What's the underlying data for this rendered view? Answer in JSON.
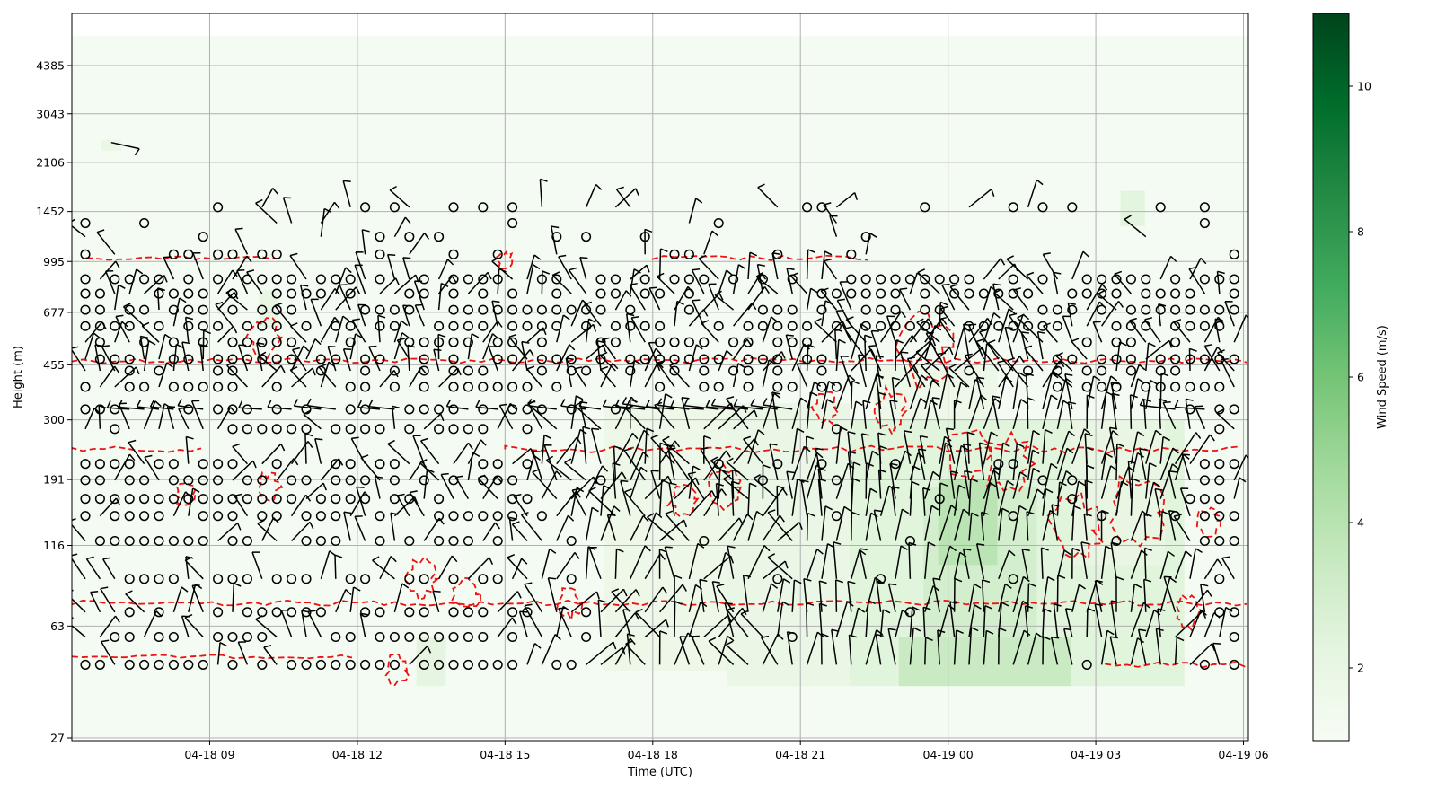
{
  "chart_data": {
    "type": "heatmap",
    "title": "",
    "xlabel": "Time (UTC)",
    "ylabel": "Height (m)",
    "x_ticks": [
      "04-18 09",
      "04-18 12",
      "04-18 15",
      "04-18 18",
      "04-18 21",
      "04-19 00",
      "04-19 03",
      "04-19 06"
    ],
    "x_range_hours": [
      6.2,
      30.1
    ],
    "y_ticks": [
      "27",
      "63",
      "116",
      "191",
      "300",
      "455",
      "677",
      "995",
      "1452",
      "2106",
      "3043",
      "4385"
    ],
    "colorbar": {
      "label": "Wind Speed (m/s)",
      "colormap": "Greens",
      "range": [
        1.0,
        11.0
      ],
      "ticks": [
        "2",
        "4",
        "6",
        "8",
        "10"
      ]
    },
    "grid": true,
    "overlays": {
      "wind_barbs": "black barbs and calm circles",
      "contour": "red dashed contour lines"
    },
    "speed_field": [
      {
        "t0": 6.2,
        "t1": 30.1,
        "z0": 27,
        "z1": 5500,
        "speed": 1.2
      },
      {
        "t0": 13.2,
        "t1": 13.8,
        "z0": 40,
        "z1": 58,
        "speed": 2.2
      },
      {
        "t0": 17.0,
        "t1": 19.5,
        "z0": 45,
        "z1": 340,
        "speed": 1.7
      },
      {
        "t0": 19.5,
        "t1": 22.0,
        "z0": 40,
        "z1": 340,
        "speed": 1.9
      },
      {
        "t0": 22.0,
        "t1": 28.8,
        "z0": 40,
        "z1": 300,
        "speed": 2.4
      },
      {
        "t0": 22.5,
        "t1": 25.0,
        "z0": 300,
        "z1": 455,
        "speed": 1.7
      },
      {
        "t0": 23.0,
        "t1": 26.5,
        "z0": 40,
        "z1": 58,
        "speed": 3.4
      },
      {
        "t0": 23.5,
        "t1": 25.8,
        "z0": 58,
        "z1": 180,
        "speed": 3.0
      },
      {
        "t0": 23.8,
        "t1": 25.0,
        "z0": 100,
        "z1": 191,
        "speed": 3.9
      },
      {
        "t0": 26.5,
        "t1": 28.4,
        "z0": 100,
        "z1": 300,
        "speed": 2.0
      },
      {
        "t0": 27.5,
        "t1": 28.0,
        "z0": 1300,
        "z1": 1700,
        "speed": 2.3
      },
      {
        "t0": 6.8,
        "t1": 7.2,
        "z0": 2300,
        "z1": 2500,
        "speed": 1.9
      },
      {
        "t0": 10.0,
        "t1": 10.4,
        "z0": 600,
        "z1": 800,
        "speed": 2.0
      }
    ]
  }
}
